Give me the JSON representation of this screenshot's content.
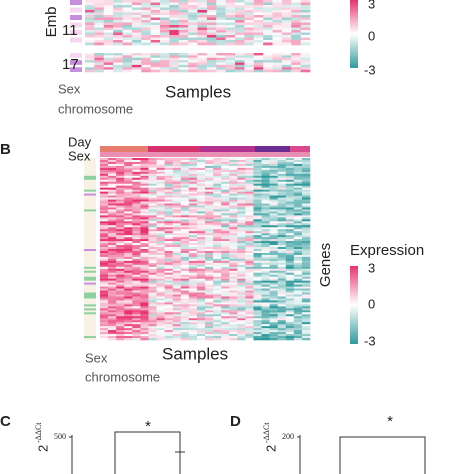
{
  "panel_a": {
    "y_label": "Emb",
    "chromosomes": [
      "11",
      "17"
    ],
    "sex_label": "Sex",
    "sex_label_2": "chromosome",
    "x_label": "Samples",
    "colorbar_ticks": [
      3,
      0,
      -3
    ]
  },
  "panel_b": {
    "letter": "B",
    "day_label": "Day",
    "sex_header": "Sex",
    "y_label": "Genes",
    "colorbar_title": "Expression",
    "colorbar_ticks": [
      3,
      0,
      -3
    ],
    "sex_label": "Sex",
    "sex_label_2": "chromosome",
    "x_label": "Samples"
  },
  "panel_c": {
    "letter": "C",
    "y_label_base": "2",
    "y_label_sup": "-ΔΔCt",
    "y_tick": 500,
    "significance": "*"
  },
  "panel_d": {
    "letter": "D",
    "y_label_base": "2",
    "y_label_sup": "-ΔΔCt",
    "y_tick": 200,
    "significance": "*"
  }
}
